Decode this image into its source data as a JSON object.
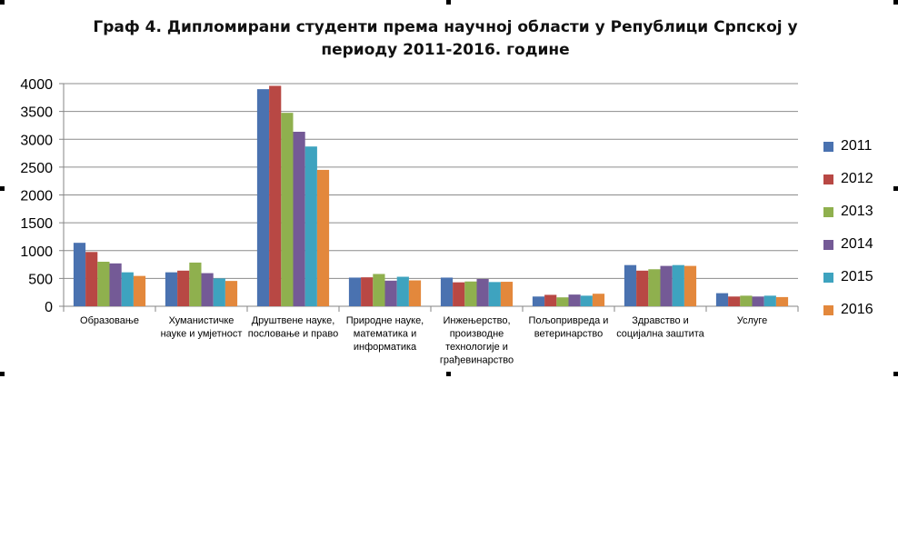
{
  "chart_data": {
    "type": "bar",
    "title": "Граф 4. Дипломирани студенти према научној области у Републици Српској у периоду 2011-2016. године",
    "xlabel": "",
    "ylabel": "",
    "ylim": [
      0,
      4000
    ],
    "yticks": [
      0,
      500,
      1000,
      1500,
      2000,
      2500,
      3000,
      3500,
      4000
    ],
    "grid": true,
    "legend_position": "right",
    "categories": [
      [
        "Образовање"
      ],
      [
        "Хуманистичке",
        "науке и умјетност"
      ],
      [
        "Друштвене науке,",
        "пословање и право"
      ],
      [
        "Природне науке,",
        "математика и",
        "информатика"
      ],
      [
        "Инжењерство,",
        "производне",
        "технологије и",
        "грађевинарство"
      ],
      [
        "Пољопривреда и",
        "ветеринарство"
      ],
      [
        "Здравство и",
        "социјална заштита"
      ],
      [
        "Услуге"
      ]
    ],
    "series": [
      {
        "name": "2011",
        "color": "#4a72b0",
        "values": [
          1140,
          610,
          3900,
          515,
          515,
          175,
          740,
          235
        ]
      },
      {
        "name": "2012",
        "color": "#b84844",
        "values": [
          975,
          640,
          3960,
          520,
          430,
          205,
          640,
          175
        ]
      },
      {
        "name": "2013",
        "color": "#8fb04e",
        "values": [
          800,
          785,
          3475,
          580,
          445,
          160,
          665,
          190
        ]
      },
      {
        "name": "2014",
        "color": "#745a96",
        "values": [
          770,
          595,
          3135,
          460,
          490,
          210,
          725,
          175
        ]
      },
      {
        "name": "2015",
        "color": "#3ea3bf",
        "values": [
          610,
          500,
          2870,
          530,
          435,
          190,
          740,
          190
        ]
      },
      {
        "name": "2016",
        "color": "#e3883c",
        "values": [
          545,
          455,
          2450,
          465,
          440,
          225,
          725,
          165
        ]
      }
    ]
  }
}
